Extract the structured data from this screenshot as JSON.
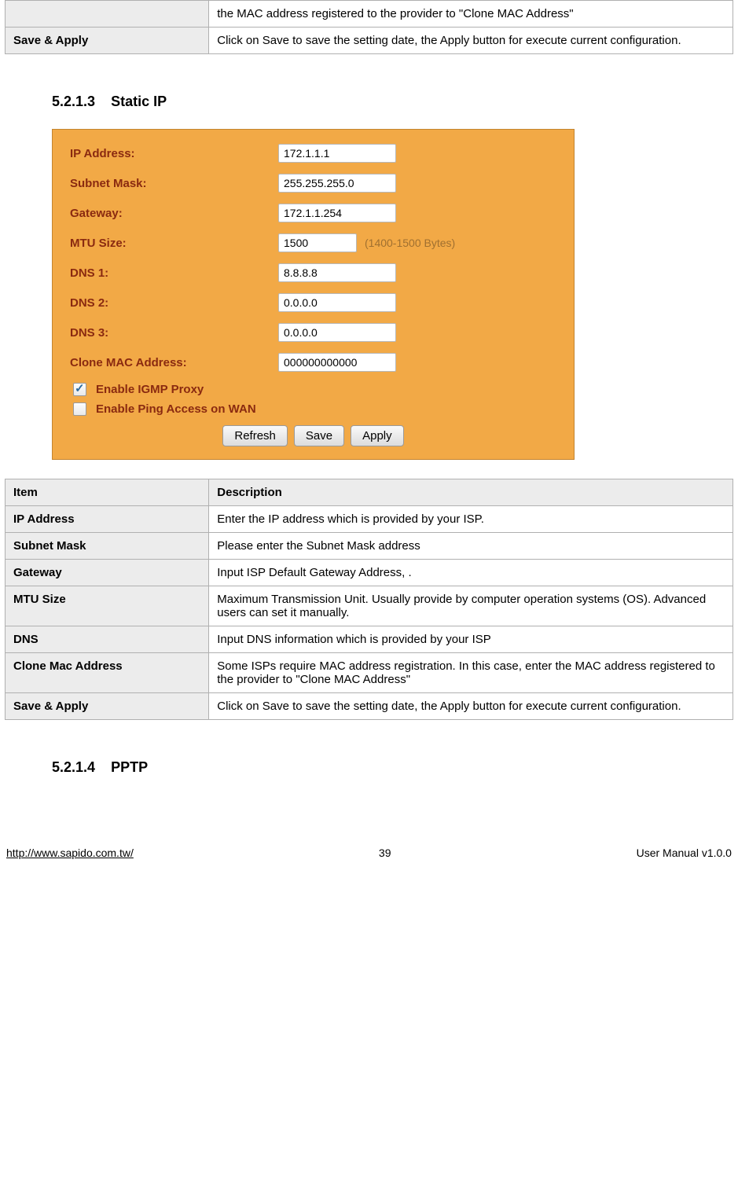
{
  "top_table": {
    "rows": [
      {
        "label": "",
        "desc": "the MAC address registered to the provider to \"Clone MAC Address\""
      },
      {
        "label": "Save & Apply",
        "desc": "Click on Save to save the setting date, the Apply button for execute current configuration."
      }
    ]
  },
  "section_static_ip": {
    "number": "5.2.1.3",
    "title": "Static IP"
  },
  "config_panel": {
    "bg_color": "#f2a946",
    "label_color": "#8a2a10",
    "fields": [
      {
        "label": "IP Address:",
        "value": "172.1.1.1",
        "narrow": false
      },
      {
        "label": "Subnet Mask:",
        "value": "255.255.255.0",
        "narrow": false
      },
      {
        "label": "Gateway:",
        "value": "172.1.1.254",
        "narrow": false
      },
      {
        "label": "MTU Size:",
        "value": "1500",
        "narrow": true,
        "hint": "(1400-1500 Bytes)"
      },
      {
        "label": "DNS 1:",
        "value": "8.8.8.8",
        "narrow": false
      },
      {
        "label": "DNS 2:",
        "value": "0.0.0.0",
        "narrow": false
      },
      {
        "label": "DNS 3:",
        "value": "0.0.0.0",
        "narrow": false
      },
      {
        "label": "Clone MAC Address:",
        "value": "000000000000",
        "narrow": false
      }
    ],
    "checkboxes": [
      {
        "label": "Enable IGMP Proxy",
        "checked": true
      },
      {
        "label": "Enable Ping Access on WAN",
        "checked": false
      }
    ],
    "buttons": [
      "Refresh",
      "Save",
      "Apply"
    ]
  },
  "desc_table": {
    "header": {
      "item": "Item",
      "desc": "Description"
    },
    "rows": [
      {
        "item": "IP Address",
        "desc": "Enter the IP address which is provided by your ISP."
      },
      {
        "item": "Subnet Mask",
        "desc": "Please enter the Subnet Mask address"
      },
      {
        "item": "Gateway",
        "desc": "Input ISP Default Gateway Address, ."
      },
      {
        "item": "MTU Size",
        "desc": "Maximum Transmission Unit. Usually provide by computer operation systems (OS). Advanced users can set it manually."
      },
      {
        "item": "DNS",
        "desc": "Input DNS information which is provided by your ISP"
      },
      {
        "item": "Clone Mac Address",
        "desc": "Some ISPs require MAC address registration. In this case, enter the MAC address registered to the provider to \"Clone MAC Address\""
      },
      {
        "item": "Save & Apply",
        "desc": "Click on Save to save the setting date, the Apply button for execute current configuration."
      }
    ]
  },
  "section_pptp": {
    "number": "5.2.1.4",
    "title": "PPTP"
  },
  "footer": {
    "url": "http://www.sapido.com.tw/",
    "page": "39",
    "right": "User Manual v1.0.0"
  }
}
